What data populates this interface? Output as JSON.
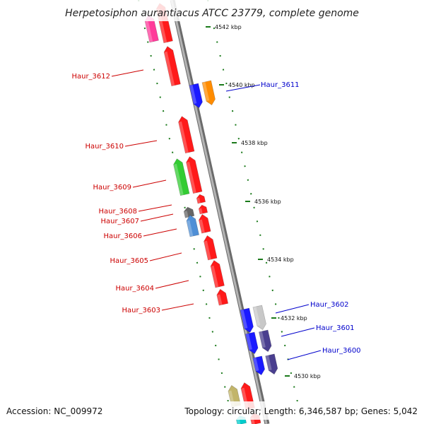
{
  "title": "Herpetosiphon aurantiacus ATCC 23779, complete genome",
  "accession": "Accession: NC_009972",
  "topology": "Topology: circular; Length: 6,346,587 bp; Genes: 5,042",
  "colors": {
    "backbone": "#9a9a9a",
    "tick": "#1b7a1b",
    "reverse_label": "#cc0000",
    "forward_label": "#0000cc"
  },
  "scale_labels": [
    "4542 kbp",
    "4540 kbp",
    "4538 kbp",
    "4536 kbp",
    "4534 kbp",
    "4532 kbp",
    "4530 kbp"
  ],
  "gene_labels": [
    {
      "name": "Haur_3612",
      "strand": "reverse"
    },
    {
      "name": "Haur_3611",
      "strand": "forward"
    },
    {
      "name": "Haur_3610",
      "strand": "reverse"
    },
    {
      "name": "Haur_3609",
      "strand": "reverse"
    },
    {
      "name": "Haur_3608",
      "strand": "reverse"
    },
    {
      "name": "Haur_3607",
      "strand": "reverse"
    },
    {
      "name": "Haur_3606",
      "strand": "reverse"
    },
    {
      "name": "Haur_3605",
      "strand": "reverse"
    },
    {
      "name": "Haur_3604",
      "strand": "reverse"
    },
    {
      "name": "Haur_3603",
      "strand": "reverse"
    },
    {
      "name": "Haur_3602",
      "strand": "forward"
    },
    {
      "name": "Haur_3601",
      "strand": "forward"
    },
    {
      "name": "Haur_3600",
      "strand": "forward"
    }
  ],
  "genes": [
    {
      "strand": "reverse",
      "track": "inner",
      "color": "#ff3b9a"
    },
    {
      "strand": "reverse",
      "track": "outer",
      "color": "#ff1a1a"
    },
    {
      "strand": "reverse",
      "track": "outer",
      "color": "#ff1a1a"
    },
    {
      "strand": "forward",
      "track": "inner",
      "color": "#1a1aff"
    },
    {
      "strand": "forward",
      "track": "outer",
      "color": "#ff8c00"
    },
    {
      "strand": "reverse",
      "track": "outer",
      "color": "#ff1a1a"
    },
    {
      "strand": "reverse",
      "track": "inner",
      "color": "#33cc33"
    },
    {
      "strand": "reverse",
      "track": "outer",
      "color": "#ff1a1a"
    },
    {
      "strand": "reverse",
      "track": "outer",
      "color": "#ff1a1a"
    },
    {
      "strand": "reverse",
      "track": "inner",
      "color": "#666666"
    },
    {
      "strand": "reverse",
      "track": "outer",
      "color": "#ff1a1a"
    },
    {
      "strand": "reverse",
      "track": "inner",
      "color": "#4f8fd6"
    },
    {
      "strand": "reverse",
      "track": "outer",
      "color": "#ff1a1a"
    },
    {
      "strand": "reverse",
      "track": "outer",
      "color": "#ff1a1a"
    },
    {
      "strand": "reverse",
      "track": "outer",
      "color": "#ff1a1a"
    },
    {
      "strand": "reverse",
      "track": "outer",
      "color": "#ff1a1a"
    },
    {
      "strand": "forward",
      "track": "inner",
      "color": "#1a1aff"
    },
    {
      "strand": "forward",
      "track": "outer",
      "color": "#c8c8c8"
    },
    {
      "strand": "forward",
      "track": "inner",
      "color": "#1a1aff"
    },
    {
      "strand": "forward",
      "track": "outer",
      "color": "#4a3f8f"
    },
    {
      "strand": "forward",
      "track": "inner",
      "color": "#1a1aff"
    },
    {
      "strand": "forward",
      "track": "outer",
      "color": "#4a3f8f"
    },
    {
      "strand": "reverse",
      "track": "inner",
      "color": "#c2b56a"
    },
    {
      "strand": "reverse",
      "track": "outer",
      "color": "#ff1a1a"
    },
    {
      "strand": "reverse",
      "track": "outer",
      "color": "#ff1a1a"
    },
    {
      "strand": "reverse",
      "track": "inner",
      "color": "#00cccc"
    }
  ]
}
